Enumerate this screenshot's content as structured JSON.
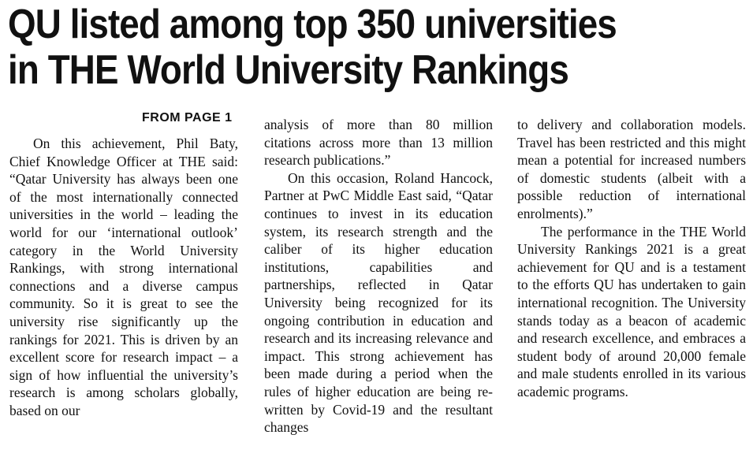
{
  "article": {
    "headline_line1": "QU listed among top 350 universities",
    "headline_line2": "in THE World University Rankings",
    "kicker": "FROM PAGE 1",
    "col1": {
      "p1": "On this achievement, Phil Baty, Chief Knowledge Officer at THE said: “Qatar University has always been one of the most internationally connected universities in the world – leading the world for our ‘international outlook’ category in the World University Rankings, with strong international connections and a diverse campus community. So it is great to see the university rise significantly up the rankings for 2021. This is driven by an excellent score for research impact – a sign of how influential the university’s research is among scholars globally, based on our"
    },
    "col2": {
      "p1": "analysis of more than 80 million citations across more than 13 million research publications.”",
      "p2": "On this occasion, Roland Hancock, Partner at PwC Middle East said, “Qatar continues to invest in its education system, its research strength and the caliber of its higher education institutions, capabilities and partnerships, reflected in Qatar University being recognized for its ongoing contribution in education and research and its increasing relevance and impact. This strong achievement has been made during a period when the rules of higher education are being re-written by Covid-19 and the resultant changes"
    },
    "col3": {
      "p1": "to delivery and collaboration models. Travel has been restricted and this might mean a potential for increased numbers of domestic students (albeit with a possible reduction of international enrolments).”",
      "p2": "The performance in the THE World University Rankings 2021 is a great achievement for QU and is a testament to the efforts QU has undertaken to gain international recognition. The University stands today as a beacon of academic and research excellence, and embraces a student body of around 20,000 female and male students enrolled in its various academic programs."
    }
  }
}
